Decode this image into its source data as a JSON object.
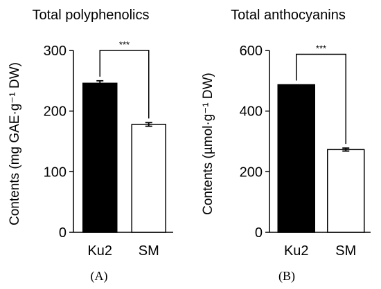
{
  "chart_data": [
    {
      "type": "bar",
      "panel_label": "(A)",
      "title": "Total polyphenolics",
      "xlabel": "",
      "ylabel": "Contents (mg GAE·g⁻¹ DW)",
      "categories": [
        "Ku2",
        "SM"
      ],
      "values": [
        246,
        178
      ],
      "errors": [
        4,
        3
      ],
      "bar_colors": [
        "#000000",
        "#ffffff"
      ],
      "ylim": [
        0,
        300
      ],
      "yticks": [
        0,
        100,
        200,
        300
      ],
      "significance": "***",
      "grid": false,
      "legend": "none"
    },
    {
      "type": "bar",
      "panel_label": "(B)",
      "title": "Total anthocyanins",
      "xlabel": "",
      "ylabel": "Contents (µmol·g⁻¹ DW)",
      "categories": [
        "Ku2",
        "SM"
      ],
      "values": [
        487,
        273
      ],
      "errors": [
        0,
        5
      ],
      "bar_colors": [
        "#000000",
        "#ffffff"
      ],
      "ylim": [
        0,
        600
      ],
      "yticks": [
        0,
        200,
        400,
        600
      ],
      "significance": "***",
      "grid": false,
      "legend": "none"
    }
  ]
}
